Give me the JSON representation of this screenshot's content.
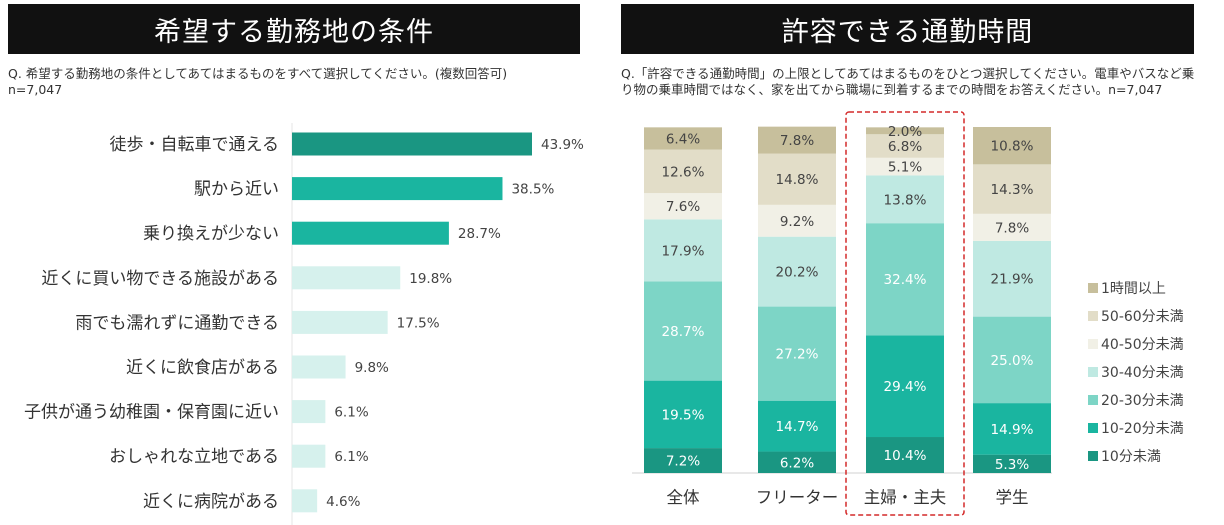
{
  "left": {
    "title": "希望する勤務地の条件",
    "question": "Q. 希望する勤務地の条件としてあてはまるものをすべて選択してください。(複数回答可)",
    "n": "n=7,047"
  },
  "right": {
    "title": "許容できる通勤時間",
    "question_line1": "Q.「許容できる通勤時間」の上限としてあてはまるものをひとつ選択してください。電車やバスなど乗",
    "question_line2": "り物の乗車時間ではなく、家を出てから職場に到着するまでの時間をお答えください。n=7,047"
  },
  "chart_data": [
    {
      "type": "bar",
      "orientation": "horizontal",
      "title": "希望する勤務地の条件",
      "categories": [
        "徒歩・自転車で通える",
        "駅から近い",
        "乗り換えが少ない",
        "近くに買い物できる施設がある",
        "雨でも濡れずに通勤できる",
        "近くに飲食店がある",
        "子供が通う幼稚園・保育園に近い",
        "おしゃれな立地である",
        "近くに病院がある"
      ],
      "values": [
        43.9,
        38.5,
        28.7,
        19.8,
        17.5,
        9.8,
        6.1,
        6.1,
        4.6
      ],
      "value_labels": [
        "43.9%",
        "38.5%",
        "28.7%",
        "19.8%",
        "17.5%",
        "9.8%",
        "6.1%",
        "6.1%",
        "4.6%"
      ],
      "bar_colors": [
        "#1a9682",
        "#1ab5a0",
        "#1ab5a0",
        "#d6f1ed",
        "#d6f1ed",
        "#d6f1ed",
        "#d6f1ed",
        "#d6f1ed",
        "#d6f1ed"
      ],
      "xlim": [
        0,
        100
      ]
    },
    {
      "type": "bar",
      "stacked": true,
      "title": "許容できる通勤時間",
      "categories": [
        "全体",
        "フリーター",
        "主婦・主夫",
        "学生"
      ],
      "highlight_category": "主婦・主夫",
      "series": [
        {
          "name": "10分未満",
          "color": "#1a9682",
          "values": [
            7.2,
            6.2,
            10.4,
            5.3
          ],
          "labels": [
            "7.2%",
            "6.2%",
            "10.4%",
            "5.3%"
          ]
        },
        {
          "name": "10-20分未満",
          "color": "#1ab5a0",
          "values": [
            19.5,
            14.7,
            29.4,
            14.9
          ],
          "labels": [
            "19.5%",
            "14.7%",
            "29.4%",
            "14.9%"
          ]
        },
        {
          "name": "20-30分未満",
          "color": "#7dd5c6",
          "values": [
            28.7,
            27.2,
            32.4,
            25.0
          ],
          "labels": [
            "28.7%",
            "27.2%",
            "32.4%",
            "25.0%"
          ]
        },
        {
          "name": "30-40分未満",
          "color": "#bfe9e2",
          "values": [
            17.9,
            20.2,
            13.8,
            21.9
          ],
          "labels": [
            "17.9%",
            "20.2%",
            "13.8%",
            "21.9%"
          ]
        },
        {
          "name": "40-50分未満",
          "color": "#f1f0e6",
          "values": [
            7.6,
            9.2,
            5.1,
            7.8
          ],
          "labels": [
            "7.6%",
            "9.2%",
            "5.1%",
            "7.8%"
          ]
        },
        {
          "name": "50-60分未満",
          "color": "#e2ddc8",
          "values": [
            12.6,
            14.8,
            6.8,
            14.3
          ],
          "labels": [
            "12.6%",
            "14.8%",
            "6.8%",
            "14.3%"
          ]
        },
        {
          "name": "1時間以上",
          "color": "#c7bf9c",
          "values": [
            6.4,
            7.8,
            2.0,
            10.8
          ],
          "labels": [
            "6.4%",
            "7.8%",
            "2.0%",
            "10.8%"
          ]
        }
      ],
      "legend_position": "right",
      "ylim": [
        0,
        100
      ]
    }
  ]
}
